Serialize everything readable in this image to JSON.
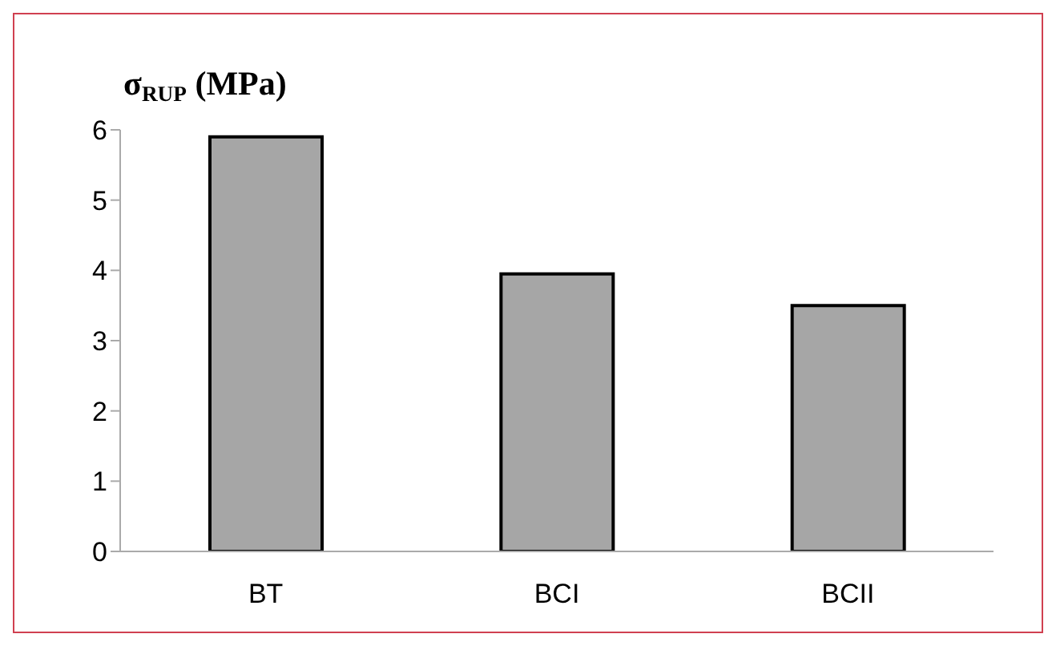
{
  "chart_data": {
    "type": "bar",
    "ylabel": "σ$_{RUP}$ (MPa)",
    "categories": [
      "BT",
      "BCI",
      "BCII"
    ],
    "values": [
      5.9,
      3.95,
      3.5
    ],
    "color": "#a6a6a6",
    "ylim": [
      0,
      6
    ],
    "yticks": [
      0,
      1,
      2,
      3,
      4,
      5,
      6
    ],
    "grid": false,
    "legend": false
  }
}
